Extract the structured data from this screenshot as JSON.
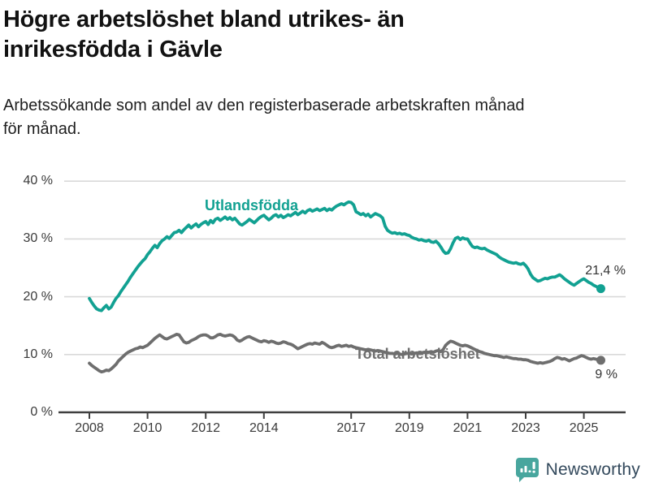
{
  "header": {
    "title_line1": "Högre arbetslöshet bland utrikes- än",
    "title_line2": "inrikesfödda i Gävle",
    "subtitle_line1": "Arbetssökande som andel av den registerbaserade arbetskraften månad",
    "subtitle_line2": "för månad."
  },
  "annotations": {
    "series1_label": "Utlandsfödda",
    "series1_end_value": "21,4 %",
    "series2_label": "Total arbetslöshet",
    "series2_end_value": "9 %"
  },
  "footer": {
    "brand": "Newsworthy",
    "brand_icon": "speech-bubble-bar-chart"
  },
  "colors": {
    "series1": "#12a192",
    "series2": "#6e6e6e",
    "grid": "#d9d9d9",
    "axis": "#3f3f3f",
    "brand_icon": "#48a69e",
    "brand_text": "#33495c"
  },
  "chart_data": {
    "type": "line",
    "title": "Högre arbetslöshet bland utrikes- än inrikesfödda i Gävle",
    "subtitle": "Arbetssökande som andel av den registerbaserade arbetskraften månad för månad.",
    "unit": "%",
    "x_start_year": 2008,
    "points_per_year": 12,
    "ylim": [
      0,
      40
    ],
    "y_ticks": [
      0,
      10,
      20,
      30,
      40
    ],
    "y_tick_labels": [
      "0 %",
      "10 %",
      "20 %",
      "30 %",
      "40 %"
    ],
    "x_tick_years": [
      2008,
      2010,
      2012,
      2014,
      2017,
      2019,
      2021,
      2023,
      2025
    ],
    "x_tick_labels": [
      "2008",
      "2010",
      "2012",
      "2014",
      "2017",
      "2019",
      "2021",
      "2023",
      "2025"
    ],
    "grid": true,
    "legend_position": "inline-labels",
    "series": [
      {
        "name": "Utlandsfödda",
        "color": "#12a192",
        "end_value": 21.4,
        "end_value_label": "21,4 %",
        "values": [
          19.7,
          19.0,
          18.4,
          17.9,
          17.7,
          17.6,
          18.1,
          18.5,
          17.9,
          18.2,
          19.0,
          19.7,
          20.2,
          20.9,
          21.5,
          22.1,
          22.7,
          23.4,
          24.0,
          24.6,
          25.2,
          25.7,
          26.2,
          26.6,
          27.3,
          27.8,
          28.4,
          28.9,
          28.5,
          29.2,
          29.7,
          30.0,
          30.4,
          30.1,
          30.6,
          31.1,
          31.2,
          31.5,
          31.1,
          31.6,
          32.0,
          32.4,
          31.9,
          32.3,
          32.6,
          32.1,
          32.5,
          32.8,
          33.0,
          32.5,
          33.2,
          32.8,
          33.4,
          33.6,
          33.2,
          33.5,
          33.8,
          33.4,
          33.7,
          33.3,
          33.6,
          33.1,
          32.6,
          32.4,
          32.7,
          33.0,
          33.4,
          33.1,
          32.8,
          33.2,
          33.6,
          33.9,
          34.1,
          33.7,
          33.3,
          33.6,
          34.0,
          34.2,
          33.8,
          34.1,
          33.7,
          33.9,
          34.2,
          34.0,
          34.3,
          34.6,
          34.2,
          34.5,
          34.8,
          34.5,
          34.9,
          35.1,
          34.8,
          35.0,
          35.2,
          34.9,
          35.1,
          35.3,
          34.9,
          35.2,
          35.0,
          35.4,
          35.7,
          35.9,
          36.1,
          35.9,
          36.2,
          36.4,
          36.3,
          35.9,
          34.7,
          34.5,
          34.2,
          34.4,
          34.0,
          34.3,
          33.8,
          34.1,
          34.4,
          34.2,
          34.0,
          33.6,
          32.2,
          31.5,
          31.2,
          31.0,
          31.1,
          30.9,
          31.0,
          30.8,
          30.9,
          30.7,
          30.6,
          30.3,
          30.1,
          30.0,
          29.8,
          29.9,
          29.7,
          29.6,
          29.8,
          29.5,
          29.4,
          29.6,
          29.2,
          28.6,
          27.9,
          27.5,
          27.6,
          28.3,
          29.3,
          30.1,
          30.3,
          29.9,
          30.2,
          30.0,
          30.0,
          29.3,
          28.7,
          28.5,
          28.6,
          28.4,
          28.3,
          28.4,
          28.1,
          27.9,
          27.7,
          27.5,
          27.3,
          26.9,
          26.6,
          26.4,
          26.2,
          26.0,
          25.9,
          25.8,
          25.9,
          25.7,
          25.6,
          25.8,
          25.4,
          24.8,
          23.9,
          23.3,
          23.0,
          22.7,
          22.8,
          23.0,
          23.2,
          23.1,
          23.3,
          23.4,
          23.4,
          23.6,
          23.8,
          23.5,
          23.1,
          22.8,
          22.5,
          22.2,
          22.0,
          22.3,
          22.6,
          22.9,
          23.1,
          22.8,
          22.5,
          22.3,
          22.0,
          21.8,
          21.6,
          21.4
        ]
      },
      {
        "name": "Total arbetslöshet",
        "color": "#6e6e6e",
        "end_value": 9.0,
        "end_value_label": "9 %",
        "values": [
          8.5,
          8.1,
          7.8,
          7.5,
          7.2,
          7.0,
          7.1,
          7.3,
          7.2,
          7.5,
          7.9,
          8.3,
          8.9,
          9.3,
          9.7,
          10.1,
          10.4,
          10.6,
          10.8,
          11.0,
          11.1,
          11.3,
          11.2,
          11.4,
          11.6,
          12.0,
          12.4,
          12.8,
          13.1,
          13.4,
          13.1,
          12.8,
          12.7,
          12.9,
          13.1,
          13.3,
          13.5,
          13.4,
          12.8,
          12.2,
          12.0,
          12.1,
          12.4,
          12.6,
          12.8,
          13.1,
          13.3,
          13.4,
          13.4,
          13.2,
          12.9,
          12.9,
          13.1,
          13.4,
          13.5,
          13.3,
          13.2,
          13.3,
          13.4,
          13.3,
          13.0,
          12.5,
          12.3,
          12.5,
          12.8,
          13.0,
          13.1,
          12.9,
          12.7,
          12.5,
          12.3,
          12.2,
          12.4,
          12.3,
          12.1,
          12.3,
          12.2,
          12.0,
          11.9,
          12.0,
          12.2,
          12.1,
          11.9,
          11.8,
          11.6,
          11.3,
          11.0,
          11.2,
          11.4,
          11.6,
          11.8,
          11.9,
          11.8,
          12.0,
          11.9,
          11.8,
          12.1,
          11.9,
          11.6,
          11.3,
          11.2,
          11.3,
          11.5,
          11.6,
          11.4,
          11.5,
          11.6,
          11.4,
          11.5,
          11.3,
          11.2,
          11.1,
          11.0,
          10.9,
          10.8,
          10.9,
          10.8,
          10.7,
          10.6,
          10.7,
          10.6,
          10.5,
          10.4,
          10.3,
          10.2,
          10.2,
          10.1,
          10.2,
          10.1,
          10.0,
          10.1,
          10.2,
          10.2,
          10.1,
          10.2,
          10.3,
          10.2,
          10.3,
          10.4,
          10.3,
          10.4,
          10.5,
          10.4,
          10.6,
          10.7,
          10.5,
          10.9,
          11.6,
          12.0,
          12.3,
          12.2,
          12.0,
          11.8,
          11.6,
          11.5,
          11.6,
          11.5,
          11.3,
          11.1,
          10.9,
          10.7,
          10.5,
          10.4,
          10.2,
          10.1,
          10.0,
          9.9,
          9.8,
          9.8,
          9.7,
          9.6,
          9.5,
          9.6,
          9.5,
          9.4,
          9.3,
          9.3,
          9.2,
          9.2,
          9.1,
          9.1,
          9.0,
          8.8,
          8.7,
          8.6,
          8.5,
          8.6,
          8.5,
          8.6,
          8.7,
          8.8,
          9.0,
          9.3,
          9.5,
          9.4,
          9.2,
          9.3,
          9.1,
          8.9,
          9.1,
          9.3,
          9.4,
          9.6,
          9.8,
          9.7,
          9.5,
          9.3,
          9.2,
          9.3,
          9.2,
          9.1,
          9.0
        ]
      }
    ]
  }
}
